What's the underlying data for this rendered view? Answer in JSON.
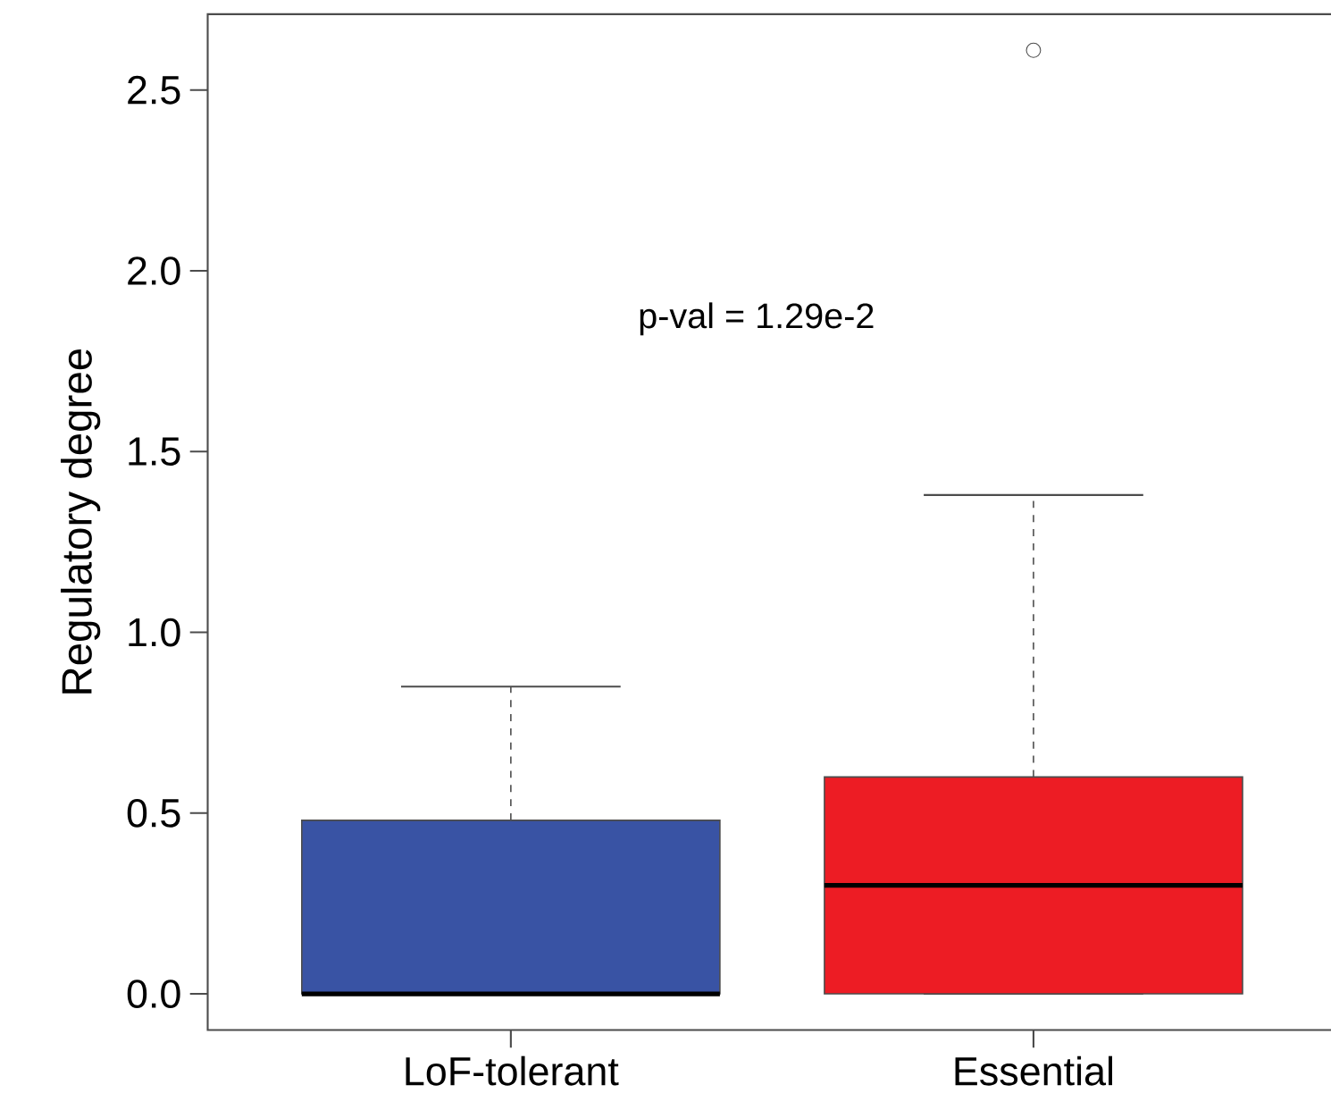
{
  "chart_data": {
    "type": "box",
    "ylabel": "Regulatory degree",
    "annotations": [
      "p-val = 1.29e-2"
    ],
    "categories": [
      "LoF-tolerant",
      "Essential"
    ],
    "colors": [
      "#3953a4",
      "#ed1c24"
    ],
    "boxes": [
      {
        "low": 0,
        "q1": 0,
        "median": 0,
        "q3": 0.48,
        "high": 0.85
      },
      {
        "low": 0,
        "q1": 0,
        "median": 0.3,
        "q3": 0.6,
        "high": 1.38,
        "outliers": [
          2.61
        ]
      }
    ],
    "ylim": [
      -0.1,
      2.71
    ],
    "yticks": [
      {
        "value": 0,
        "label": "0.0"
      },
      0.5,
      {
        "value": 1,
        "label": "1.0"
      },
      1.5,
      {
        "value": 2,
        "label": "2.0"
      },
      2.5
    ]
  }
}
